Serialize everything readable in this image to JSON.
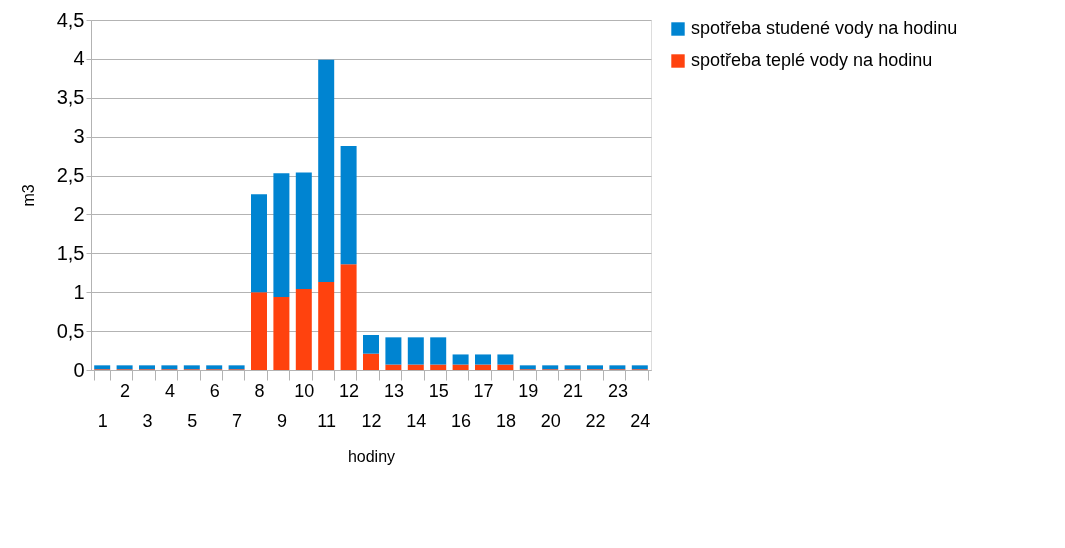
{
  "chart_data": {
    "type": "bar",
    "stacked": true,
    "xlabel": "hodiny",
    "ylabel": "m3",
    "categories": [
      "1",
      "2",
      "3",
      "4",
      "5",
      "6",
      "7",
      "8",
      "9",
      "10",
      "11",
      "12",
      "12",
      "13",
      "14",
      "15",
      "16",
      "17",
      "18",
      "19",
      "20",
      "21",
      "22",
      "23",
      "24"
    ],
    "series": [
      {
        "name": "spotřeba teplé vody na hodinu",
        "color": "#ff420e",
        "values": [
          0.01,
          0.01,
          0.01,
          0.01,
          0.01,
          0.01,
          0.01,
          1.0,
          0.94,
          1.04,
          1.13,
          1.36,
          0.21,
          0.07,
          0.07,
          0.07,
          0.07,
          0.07,
          0.07,
          0.01,
          0.01,
          0.01,
          0.01,
          0.01,
          0.01
        ]
      },
      {
        "name": "spotřeba studené vody na hodinu",
        "color": "#0084d1",
        "values": [
          0.05,
          0.05,
          0.05,
          0.05,
          0.05,
          0.05,
          0.05,
          1.26,
          1.59,
          1.5,
          2.86,
          1.52,
          0.24,
          0.35,
          0.35,
          0.35,
          0.13,
          0.13,
          0.13,
          0.05,
          0.05,
          0.05,
          0.05,
          0.05,
          0.05
        ]
      }
    ],
    "ylim": [
      0,
      4.5
    ],
    "yticks": [
      0,
      {
        "value": 0.5,
        "label": "0,5"
      },
      1,
      {
        "value": 1.5,
        "label": "1,5"
      },
      2,
      {
        "value": 2.5,
        "label": "2,5"
      },
      3,
      {
        "value": 3.5,
        "label": "3,5"
      },
      4,
      {
        "value": 4.5,
        "label": "4,5"
      }
    ],
    "grid": "y",
    "legend": "right"
  }
}
